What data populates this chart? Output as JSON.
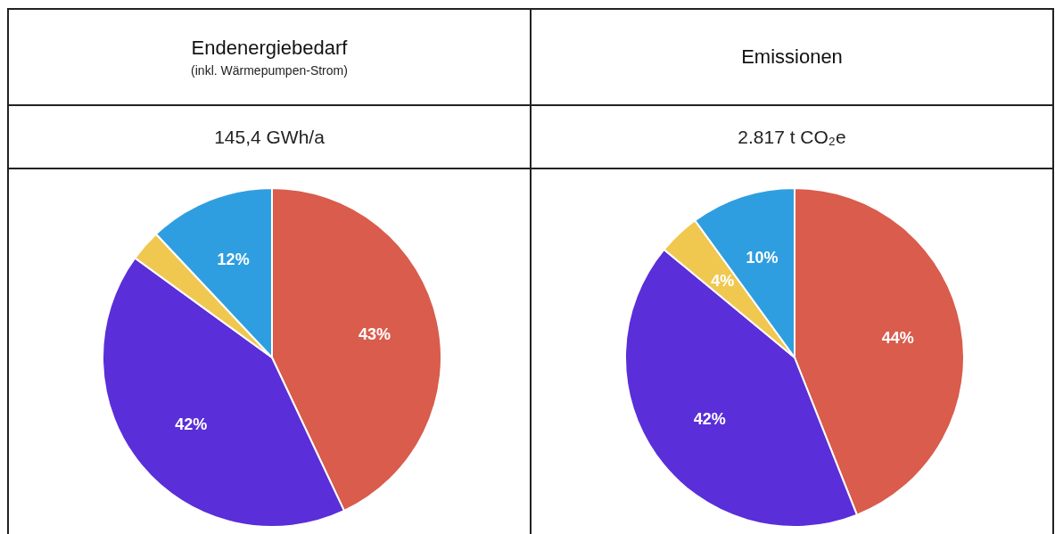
{
  "chart_data": [
    {
      "type": "pie",
      "title": "Endenergiebedarf",
      "subtitle": "(inkl. Wärmepumpen-Strom)",
      "annotations": [
        "145,4 GWh/a"
      ],
      "categories": [
        null,
        null,
        null,
        null
      ],
      "values": [
        43,
        42,
        3,
        12
      ],
      "colors": [
        "#d95c4c",
        "#5a2ed9",
        "#f0c850",
        "#2f9ee0"
      ],
      "value_labels": [
        "43%",
        "42%",
        null,
        "12%"
      ],
      "legend": false
    },
    {
      "type": "pie",
      "title": "Emissionen",
      "annotations": [
        "2.817 t CO₂e"
      ],
      "categories": [
        null,
        null,
        null,
        null
      ],
      "values": [
        44,
        42,
        4,
        10
      ],
      "colors": [
        "#d95c4c",
        "#5a2ed9",
        "#f0c850",
        "#2f9ee0"
      ],
      "value_labels": [
        "44%",
        "42%",
        "4%",
        "10%"
      ],
      "legend": false
    }
  ]
}
